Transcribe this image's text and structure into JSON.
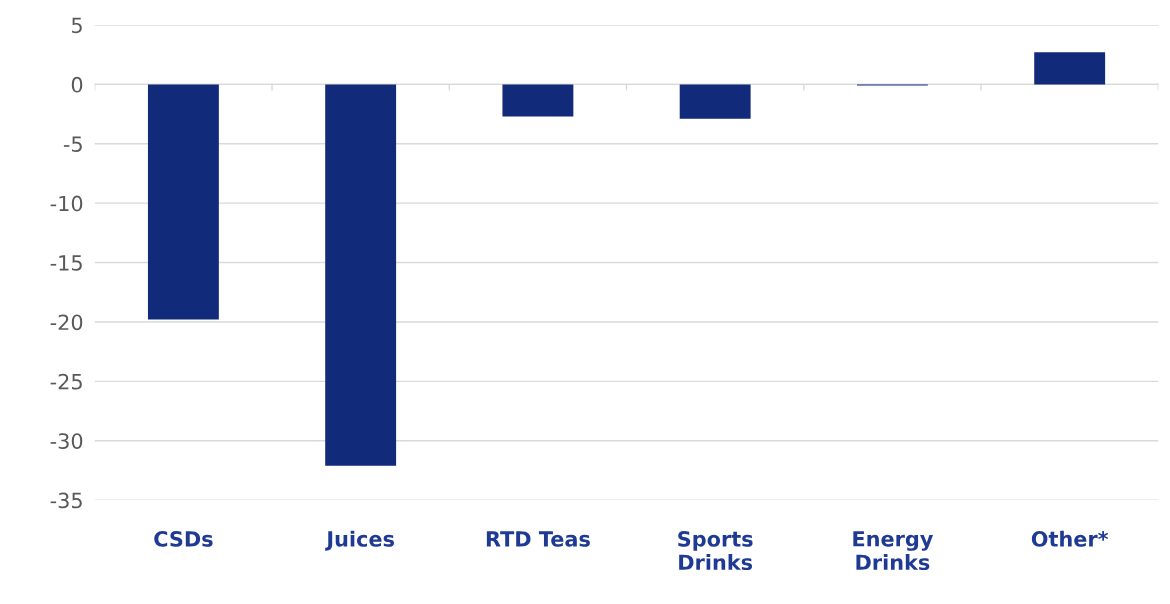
{
  "chart_data": {
    "type": "bar",
    "categories": [
      "CSDs",
      "Juices",
      "RTD Teas",
      "Sports Drinks",
      "Energy Drinks",
      "Other*"
    ],
    "values": [
      -19.8,
      -32.1,
      -2.7,
      -2.9,
      -0.1,
      2.7
    ],
    "color": "#112a7a",
    "ylim": [
      -35,
      5
    ],
    "yticks": [
      -35,
      -30,
      -25,
      -20,
      -15,
      -10,
      -5,
      0,
      5
    ],
    "grid": "y",
    "legend": false
  }
}
